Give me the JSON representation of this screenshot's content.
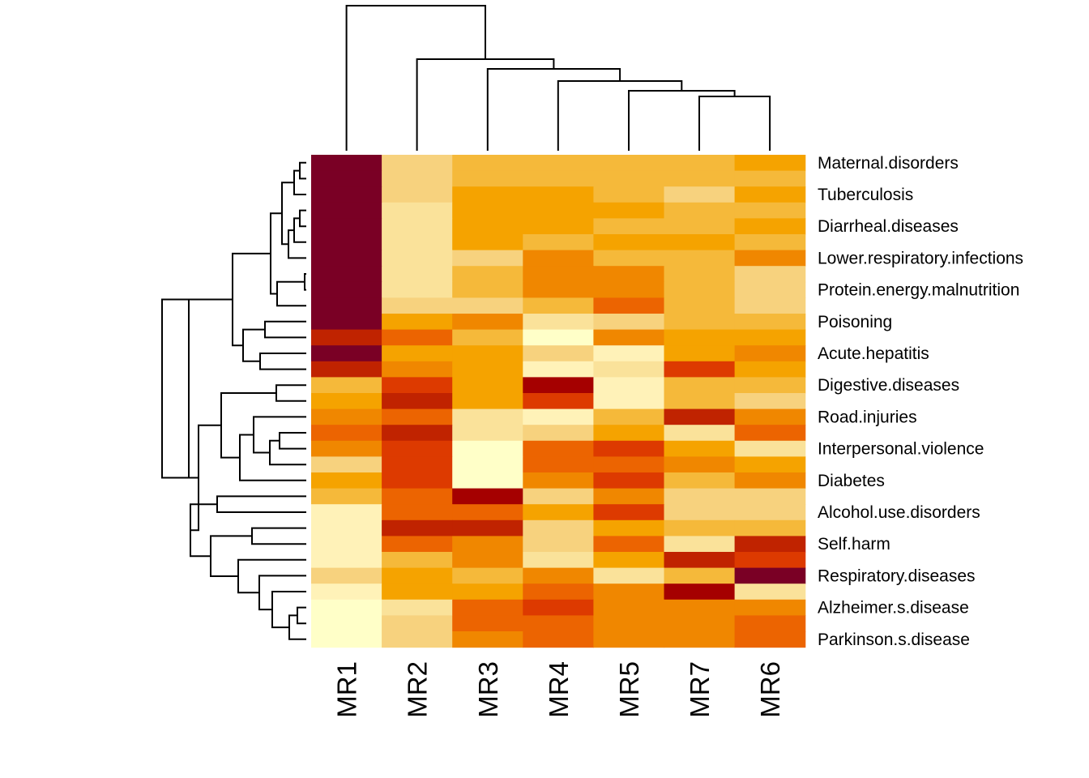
{
  "chart_data": {
    "type": "heatmap",
    "title": "",
    "xlabel": "",
    "ylabel": "",
    "columns": [
      "MR1",
      "MR2",
      "MR3",
      "MR4",
      "MR5",
      "MR7",
      "MR6"
    ],
    "rows": [
      "Maternal.disorders",
      "",
      "Tuberculosis",
      "",
      "Diarrheal.diseases",
      "",
      "Lower.respiratory.infections",
      "",
      "Protein.energy.malnutrition",
      "",
      "Poisoning",
      "",
      "Acute.hepatitis",
      "",
      "Digestive.diseases",
      "",
      "Road.injuries",
      "",
      "Interpersonal.violence",
      "",
      "Diabetes",
      "",
      "Alcohol.use.disorders",
      "",
      "Self.harm",
      "",
      "Respiratory.diseases",
      "",
      "Alzheimer.s.disease",
      "",
      "Parkinson.s.disease"
    ],
    "color_scale": [
      "#FFFFC8",
      "#FFF2B8",
      "#FAE29A",
      "#F7D27E",
      "#F5B93A",
      "#F5A300",
      "#F08700",
      "#EC6401",
      "#DD3A00",
      "#C02300",
      "#A50000",
      "#7A0025"
    ],
    "color_scale_label": "low to high (heat colors)",
    "matrix": [
      [
        11,
        3,
        4,
        4,
        4,
        4,
        5
      ],
      [
        11,
        3,
        4,
        4,
        4,
        4,
        4
      ],
      [
        11,
        3,
        5,
        5,
        4,
        3,
        5
      ],
      [
        11,
        2,
        5,
        5,
        5,
        4,
        4
      ],
      [
        11,
        2,
        5,
        5,
        4,
        4,
        5
      ],
      [
        11,
        2,
        5,
        4,
        5,
        5,
        4
      ],
      [
        11,
        2,
        3,
        6,
        4,
        4,
        6
      ],
      [
        11,
        2,
        4,
        6,
        6,
        4,
        3
      ],
      [
        11,
        2,
        4,
        6,
        6,
        4,
        3
      ],
      [
        11,
        3,
        3,
        4,
        7,
        4,
        3
      ],
      [
        11,
        5,
        6,
        2,
        3,
        4,
        4
      ],
      [
        9,
        7,
        4,
        0,
        6,
        5,
        5
      ],
      [
        11,
        5,
        5,
        3,
        1,
        5,
        6
      ],
      [
        9,
        6,
        5,
        1,
        2,
        8,
        5
      ],
      [
        4,
        8,
        5,
        10,
        1,
        4,
        4
      ],
      [
        5,
        9,
        5,
        8,
        1,
        4,
        3
      ],
      [
        6,
        7,
        2,
        1,
        4,
        9,
        6
      ],
      [
        7,
        9,
        2,
        3,
        5,
        2,
        7
      ],
      [
        6,
        8,
        0,
        7,
        8,
        5,
        2
      ],
      [
        3,
        8,
        0,
        7,
        7,
        6,
        5
      ],
      [
        5,
        8,
        0,
        6,
        8,
        4,
        6
      ],
      [
        4,
        7,
        10,
        3,
        6,
        3,
        3
      ],
      [
        1,
        7,
        7,
        5,
        8,
        3,
        3
      ],
      [
        1,
        9,
        9,
        3,
        5,
        4,
        4
      ],
      [
        1,
        7,
        6,
        3,
        7,
        2,
        9
      ],
      [
        1,
        4,
        6,
        2,
        5,
        9,
        8
      ],
      [
        3,
        5,
        4,
        6,
        2,
        4,
        11
      ],
      [
        1,
        5,
        5,
        7,
        6,
        10,
        2
      ],
      [
        0,
        2,
        7,
        8,
        6,
        6,
        6
      ],
      [
        0,
        3,
        7,
        7,
        6,
        6,
        7
      ],
      [
        0,
        3,
        6,
        7,
        6,
        6,
        7
      ]
    ],
    "column_dendrogram": true,
    "row_dendrogram": true,
    "legend": "none"
  }
}
